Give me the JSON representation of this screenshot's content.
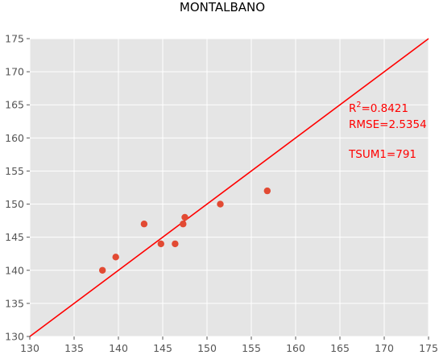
{
  "chart_data": {
    "type": "scatter",
    "title": "MONTALBANO",
    "xlabel": "",
    "ylabel": "",
    "xlim": [
      130,
      175
    ],
    "ylim": [
      130,
      175
    ],
    "xticks": [
      130,
      135,
      140,
      145,
      150,
      155,
      160,
      165,
      170,
      175
    ],
    "yticks": [
      130,
      135,
      140,
      145,
      150,
      155,
      160,
      165,
      170,
      175
    ],
    "grid": true,
    "legend": "none",
    "points": [
      {
        "x": 138.2,
        "y": 140
      },
      {
        "x": 139.7,
        "y": 142
      },
      {
        "x": 142.9,
        "y": 147
      },
      {
        "x": 144.8,
        "y": 144
      },
      {
        "x": 146.4,
        "y": 144
      },
      {
        "x": 147.3,
        "y": 147
      },
      {
        "x": 147.5,
        "y": 148
      },
      {
        "x": 151.5,
        "y": 150
      },
      {
        "x": 156.8,
        "y": 152
      }
    ],
    "reference_line": {
      "x": [
        130,
        175
      ],
      "y": [
        130,
        175
      ]
    },
    "annotations": {
      "r2_label": "R",
      "r2_sup": "2",
      "r2_value": "=0.8421",
      "rmse": "RMSE=2.5354",
      "tsum": "TSUM1=791"
    },
    "colors": {
      "background": "#e5e5e5",
      "grid": "#ffffff",
      "point": "#e24a33",
      "line": "#ff0000",
      "annotation": "#ff0000"
    }
  }
}
